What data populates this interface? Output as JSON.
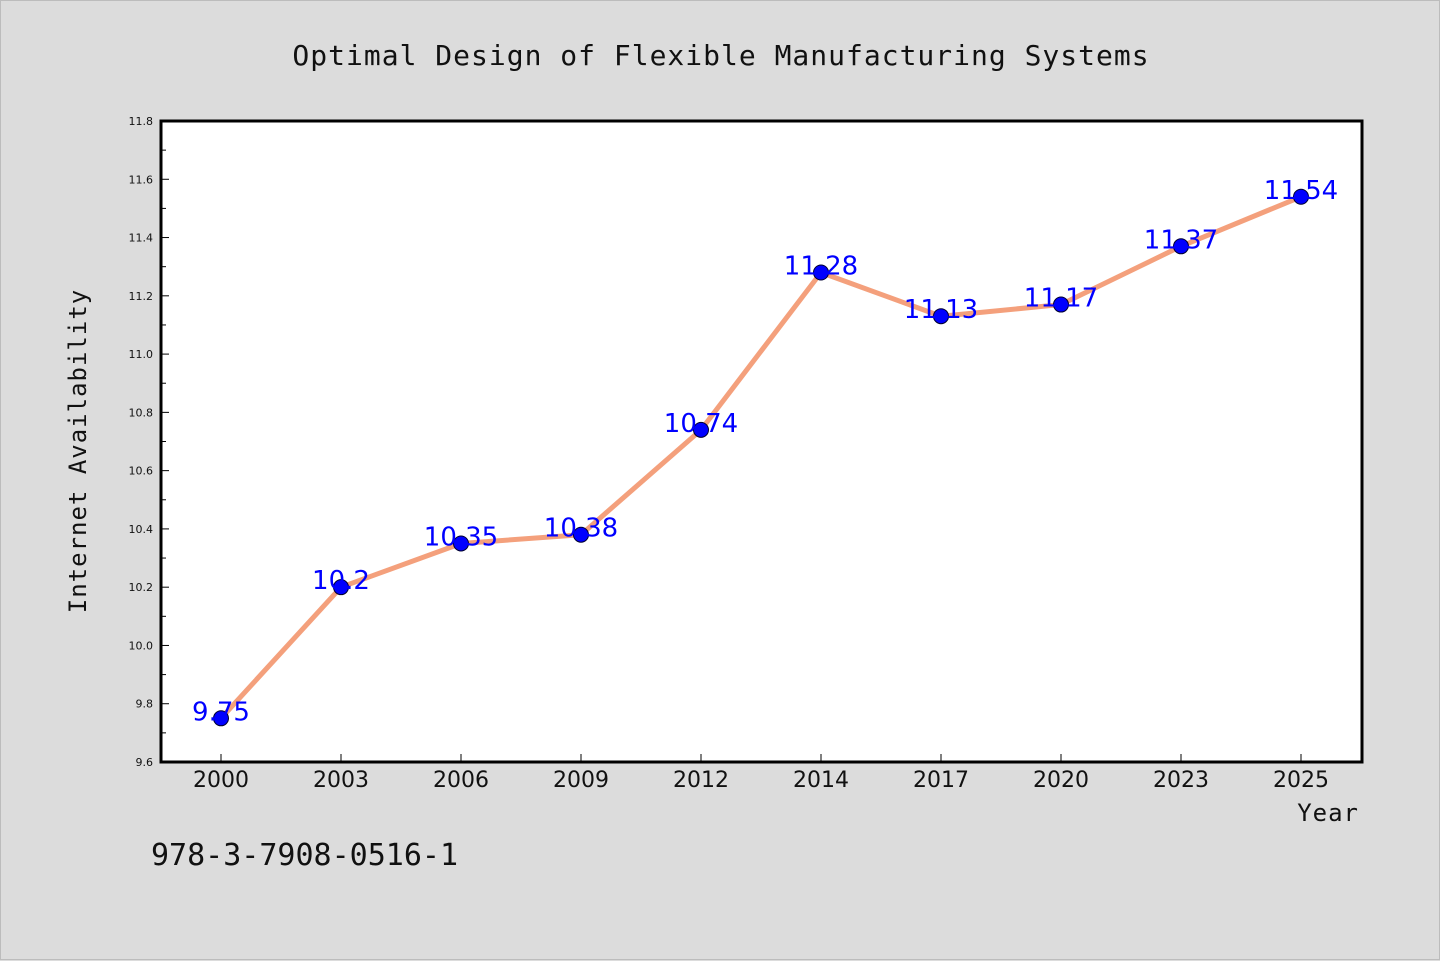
{
  "chart_data": {
    "type": "line",
    "title": "Optimal Design of Flexible Manufacturing Systems",
    "xlabel": "Year",
    "ylabel": "Internet Availability",
    "categories": [
      "2000",
      "2003",
      "2006",
      "2009",
      "2012",
      "2014",
      "2017",
      "2020",
      "2023",
      "2025"
    ],
    "series": [
      {
        "values": [
          9.75,
          10.2,
          10.35,
          10.38,
          10.74,
          11.28,
          11.13,
          11.17,
          11.37,
          11.54
        ]
      }
    ],
    "data_labels": [
      "9.75",
      "10.2",
      "10.35",
      "10.38",
      "10.74",
      "11.28",
      "11.13",
      "11.17",
      "11.37",
      "11.54"
    ],
    "ylim": [
      9.6,
      11.8
    ],
    "yticks": [
      "9.6",
      "9.8",
      "10.0",
      "10.2",
      "10.4",
      "10.6",
      "10.8",
      "11.0",
      "11.2",
      "11.4",
      "11.6",
      "11.8"
    ],
    "grid": false,
    "legend": "none",
    "colors": {
      "line": "#f4a07c",
      "marker": "#0000ff",
      "data_label": "#0000ff",
      "background": "#dcdcdc",
      "plot_background": "#ffffff"
    }
  },
  "footer_text": "978-3-7908-0516-1"
}
